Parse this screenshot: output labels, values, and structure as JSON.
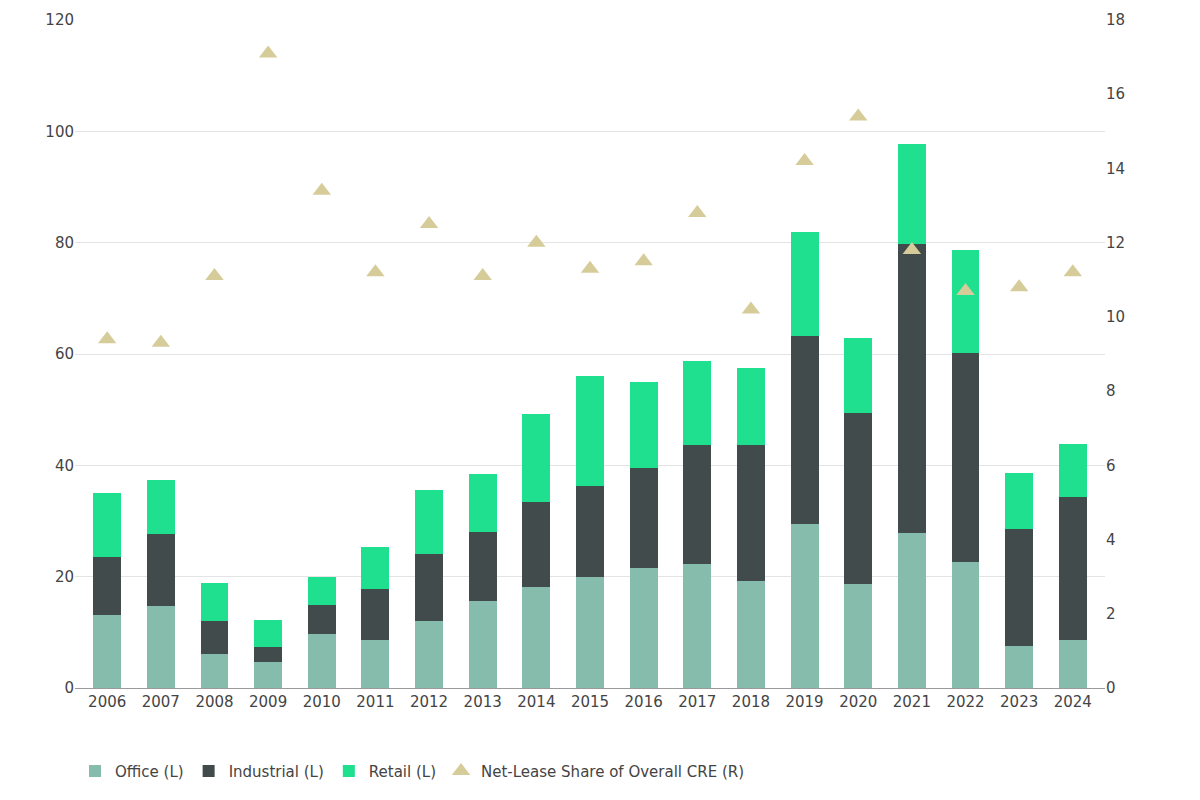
{
  "chart_data": {
    "type": "bar",
    "stacked": true,
    "grid": true,
    "legend": "bottom",
    "categories": [
      "2006",
      "2007",
      "2008",
      "2009",
      "2010",
      "2011",
      "2012",
      "2013",
      "2014",
      "2015",
      "2016",
      "2017",
      "2018",
      "2019",
      "2020",
      "2021",
      "2022",
      "2023",
      "2024"
    ],
    "ylim": [
      0,
      120
    ],
    "yticks": [
      0,
      20,
      40,
      60,
      80,
      100,
      120
    ],
    "y2lim": [
      0,
      18
    ],
    "y2ticks": [
      0,
      2,
      4,
      6,
      8,
      10,
      12,
      14,
      16,
      18
    ],
    "series": [
      {
        "name": "Office (L)",
        "color": "#86bcac",
        "values": [
          13.2,
          14.8,
          6.1,
          4.7,
          9.7,
          8.6,
          12.1,
          15.7,
          18.2,
          20.0,
          21.6,
          22.2,
          19.3,
          29.4,
          18.7,
          27.9,
          22.7,
          7.6,
          8.6
        ]
      },
      {
        "name": "Industrial (L)",
        "color": "#414b4c",
        "values": [
          10.4,
          12.8,
          6.0,
          2.7,
          5.3,
          9.1,
          12.0,
          12.4,
          15.3,
          16.2,
          17.9,
          21.4,
          24.3,
          33.8,
          30.7,
          51.9,
          37.5,
          20.9,
          25.8
        ]
      },
      {
        "name": "Retail (L)",
        "color": "#1ee08e",
        "values": [
          11.4,
          9.7,
          6.8,
          4.9,
          5.0,
          7.7,
          11.4,
          10.3,
          15.7,
          19.8,
          15.5,
          15.1,
          13.9,
          18.8,
          13.5,
          17.9,
          18.4,
          10.2,
          9.4
        ]
      },
      {
        "name": "Net-Lease Share of Overall CRE (R)",
        "color": "#d6cc9a",
        "type": "scatter",
        "marker": "triangle-up",
        "axis": "y2",
        "values": [
          9.4,
          9.3,
          11.1,
          17.1,
          13.4,
          11.2,
          12.5,
          11.1,
          12.0,
          11.3,
          11.5,
          12.8,
          10.2,
          14.2,
          15.4,
          11.8,
          10.7,
          10.8,
          11.2
        ]
      }
    ]
  }
}
